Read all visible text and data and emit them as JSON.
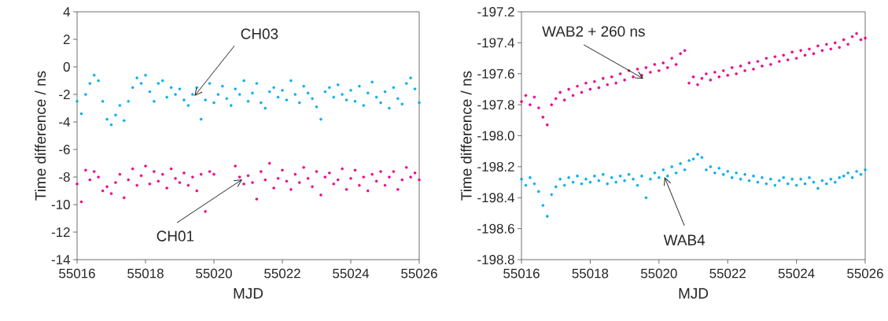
{
  "chart_data": [
    {
      "type": "scatter",
      "xlabel": "MJD",
      "ylabel": "Time difference / ns",
      "marker": "circle",
      "x": [
        55016,
        55016.125,
        55016.25,
        55016.375,
        55016.5,
        55016.625,
        55016.75,
        55016.875,
        55017,
        55017.125,
        55017.25,
        55017.375,
        55017.5,
        55017.625,
        55017.75,
        55017.875,
        55018,
        55018.125,
        55018.25,
        55018.375,
        55018.5,
        55018.625,
        55018.75,
        55018.875,
        55019,
        55019.125,
        55019.25,
        55019.375,
        55019.5,
        55019.625,
        55019.75,
        55019.875,
        55020,
        55020.125,
        55020.25,
        55020.375,
        55020.5,
        55020.625,
        55020.75,
        55020.875,
        55021,
        55021.125,
        55021.25,
        55021.375,
        55021.5,
        55021.625,
        55021.75,
        55021.875,
        55022,
        55022.125,
        55022.25,
        55022.375,
        55022.5,
        55022.625,
        55022.75,
        55022.875,
        55023,
        55023.125,
        55023.25,
        55023.375,
        55023.5,
        55023.625,
        55023.75,
        55023.875,
        55024,
        55024.125,
        55024.25,
        55024.375,
        55024.5,
        55024.625,
        55024.75,
        55024.875,
        55025,
        55025.125,
        55025.25,
        55025.375,
        55025.5,
        55025.625,
        55025.75,
        55025.875,
        55026
      ],
      "xlim": [
        55016,
        55026
      ],
      "xticks": [
        55016,
        55018,
        55020,
        55022,
        55024,
        55026
      ],
      "ylim": [
        -14,
        4
      ],
      "yticks": [
        -14,
        -12,
        -10,
        -8,
        -6,
        -4,
        -2,
        0,
        2,
        4
      ],
      "series": [
        {
          "name": "CH03",
          "color": "#00aeef",
          "values": [
            -2.5,
            -3.4,
            -2.0,
            -1.2,
            -0.6,
            -1.0,
            -2.5,
            -3.8,
            -4.2,
            -3.5,
            -2.8,
            -3.9,
            -2.5,
            -1.5,
            -0.8,
            -1.2,
            -0.6,
            -1.8,
            -2.5,
            -1.2,
            -1.0,
            -2.2,
            -1.5,
            -2.0,
            -1.6,
            -2.4,
            -2.8,
            -2.0,
            -1.5,
            -3.8,
            -2.4,
            -1.2,
            -2.6,
            -2.0,
            -1.4,
            -2.3,
            -2.8,
            -1.6,
            -2.0,
            -1.0,
            -2.5,
            -1.9,
            -1.2,
            -2.6,
            -3.0,
            -1.8,
            -1.5,
            -2.2,
            -1.7,
            -2.4,
            -1.0,
            -2.0,
            -2.6,
            -1.4,
            -1.9,
            -2.3,
            -2.9,
            -3.8,
            -1.8,
            -1.5,
            -2.2,
            -1.3,
            -2.0,
            -2.4,
            -1.7,
            -2.5,
            -1.4,
            -2.8,
            -1.9,
            -1.1,
            -2.2,
            -2.6,
            -1.8,
            -3.0,
            -1.5,
            -2.3,
            -2.7,
            -1.2,
            -0.8,
            -1.6,
            -2.6
          ]
        },
        {
          "name": "CH01",
          "color": "#ec008c",
          "values": [
            -8.5,
            -9.8,
            -7.5,
            -8.2,
            -7.6,
            -8.0,
            -9.0,
            -8.7,
            -9.2,
            -8.4,
            -7.8,
            -9.5,
            -8.2,
            -7.4,
            -8.6,
            -7.9,
            -7.2,
            -8.5,
            -7.6,
            -8.3,
            -7.8,
            -8.8,
            -7.4,
            -8.1,
            -8.4,
            -7.7,
            -8.6,
            -8.0,
            -9.0,
            -7.8,
            -10.5,
            -7.6,
            -7.8,
            null,
            null,
            null,
            null,
            -7.2,
            -8.0,
            -8.5,
            -7.9,
            -8.4,
            -9.6,
            -7.6,
            -8.2,
            -7.0,
            -8.8,
            -8.1,
            -7.5,
            -8.3,
            -8.9,
            -7.8,
            -8.4,
            -7.3,
            -8.1,
            -8.7,
            -7.6,
            -9.3,
            -8.0,
            -7.7,
            -8.5,
            -8.2,
            -7.4,
            -8.9,
            -8.1,
            -7.5,
            -8.6,
            -8.0,
            -9.0,
            -7.8,
            -8.3,
            -7.6,
            -8.6,
            -8.0,
            -7.6,
            -8.9,
            -8.2,
            -7.3,
            -8.0,
            -7.7,
            -8.2
          ]
        }
      ]
    },
    {
      "type": "scatter",
      "xlabel": "MJD",
      "ylabel": "Time difference / ns",
      "marker": "circle",
      "x": [
        55016,
        55016.125,
        55016.25,
        55016.375,
        55016.5,
        55016.625,
        55016.75,
        55016.875,
        55017,
        55017.125,
        55017.25,
        55017.375,
        55017.5,
        55017.625,
        55017.75,
        55017.875,
        55018,
        55018.125,
        55018.25,
        55018.375,
        55018.5,
        55018.625,
        55018.75,
        55018.875,
        55019,
        55019.125,
        55019.25,
        55019.375,
        55019.5,
        55019.625,
        55019.75,
        55019.875,
        55020,
        55020.125,
        55020.25,
        55020.375,
        55020.5,
        55020.625,
        55020.75,
        55020.875,
        55021,
        55021.125,
        55021.25,
        55021.375,
        55021.5,
        55021.625,
        55021.75,
        55021.875,
        55022,
        55022.125,
        55022.25,
        55022.375,
        55022.5,
        55022.625,
        55022.75,
        55022.875,
        55023,
        55023.125,
        55023.25,
        55023.375,
        55023.5,
        55023.625,
        55023.75,
        55023.875,
        55024,
        55024.125,
        55024.25,
        55024.375,
        55024.5,
        55024.625,
        55024.75,
        55024.875,
        55025,
        55025.125,
        55025.25,
        55025.375,
        55025.5,
        55025.625,
        55025.75,
        55025.875,
        55026
      ],
      "xlim": [
        55016,
        55026
      ],
      "xticks": [
        55016,
        55018,
        55020,
        55022,
        55024,
        55026
      ],
      "ylim": [
        -198.8,
        -197.2
      ],
      "yticks": [
        -198.8,
        -198.6,
        -198.4,
        -198.2,
        {
          "value": -198,
          "label": "-198.0"
        },
        -197.8,
        -197.6,
        -197.4,
        -197.2
      ],
      "series": [
        {
          "name": "WAB2 + 260 ns",
          "color": "#ec008c",
          "values": [
            -197.78,
            -197.74,
            -197.8,
            -197.75,
            -197.82,
            -197.88,
            -197.93,
            -197.8,
            -197.76,
            -197.72,
            -197.77,
            -197.7,
            -197.74,
            -197.68,
            -197.72,
            -197.66,
            -197.7,
            -197.65,
            -197.69,
            -197.63,
            -197.67,
            -197.62,
            -197.66,
            -197.6,
            -197.64,
            -197.58,
            -197.62,
            -197.57,
            -197.61,
            -197.56,
            -197.59,
            -197.54,
            -197.58,
            -197.53,
            -197.56,
            -197.5,
            -197.54,
            -197.47,
            -197.45,
            -197.66,
            -197.62,
            -197.67,
            -197.63,
            -197.6,
            -197.64,
            -197.59,
            -197.62,
            -197.58,
            -197.61,
            -197.56,
            -197.6,
            -197.55,
            -197.58,
            -197.53,
            -197.57,
            -197.52,
            -197.55,
            -197.5,
            -197.54,
            -197.49,
            -197.52,
            -197.48,
            -197.51,
            -197.46,
            -197.5,
            -197.45,
            -197.48,
            -197.44,
            -197.47,
            -197.42,
            -197.45,
            -197.41,
            -197.44,
            -197.4,
            -197.43,
            -197.38,
            -197.41,
            -197.36,
            -197.34,
            -197.38,
            -197.37
          ]
        },
        {
          "name": "WAB4",
          "color": "#00aeef",
          "values": [
            -198.28,
            -198.32,
            -198.27,
            -198.31,
            -198.36,
            -198.45,
            -198.52,
            -198.38,
            -198.33,
            -198.28,
            -198.32,
            -198.27,
            -198.3,
            -198.26,
            -198.31,
            -198.28,
            -198.3,
            -198.26,
            -198.29,
            -198.25,
            -198.31,
            -198.27,
            -198.3,
            -198.26,
            -198.29,
            -198.25,
            -198.28,
            -198.32,
            -198.26,
            -198.4,
            -198.28,
            -198.24,
            -198.27,
            -198.22,
            -198.26,
            -198.2,
            -198.24,
            -198.18,
            -198.22,
            -198.16,
            -198.15,
            -198.12,
            -198.14,
            -198.22,
            -198.2,
            -198.24,
            -198.21,
            -198.25,
            -198.23,
            -198.27,
            -198.24,
            -198.28,
            -198.25,
            -198.29,
            -198.26,
            -198.3,
            -198.27,
            -198.31,
            -198.28,
            -198.32,
            -198.29,
            -198.27,
            -198.31,
            -198.28,
            -198.32,
            -198.28,
            -198.31,
            -198.27,
            -198.3,
            -198.34,
            -198.29,
            -198.31,
            -198.28,
            -198.3,
            -198.27,
            -198.26,
            -198.24,
            -198.27,
            -198.23,
            -198.25,
            -198.22
          ]
        }
      ]
    }
  ]
}
